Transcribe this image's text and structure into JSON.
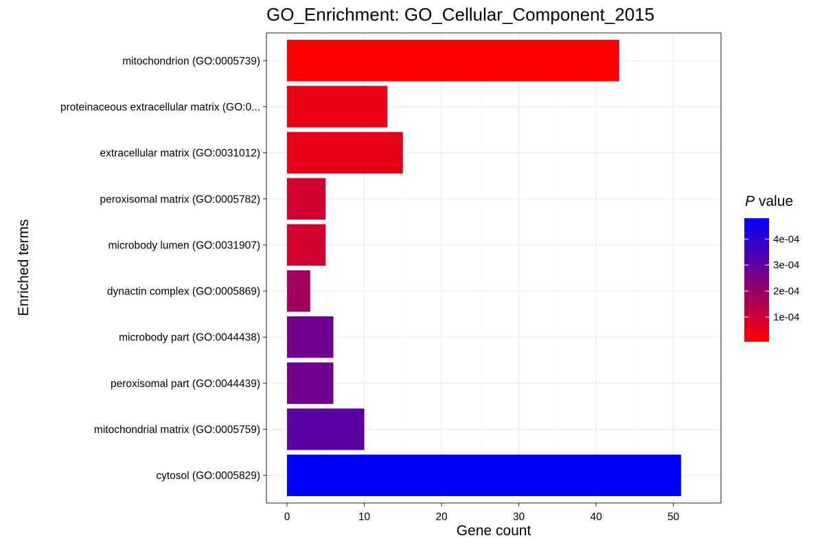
{
  "chart_data": {
    "type": "bar",
    "orientation": "horizontal",
    "title": "GO_Enrichment: GO_Cellular_Component_2015",
    "xlabel": "Gene count",
    "ylabel": "Enriched terms",
    "xlim": [
      0,
      53.5
    ],
    "xticks": [
      0,
      10,
      20,
      30,
      40,
      50
    ],
    "grid": true,
    "categories": [
      "mitochondrion (GO:0005739)",
      "proteinaceous extracellular matrix (GO:0...",
      "extracellular matrix (GO:0031012)",
      "peroxisomal matrix (GO:0005782)",
      "microbody lumen (GO:0031907)",
      "dynactin complex (GO:0005869)",
      "microbody part (GO:0044438)",
      "peroxisomal part (GO:0044439)",
      "mitochondrial matrix (GO:0005759)",
      "cytosol (GO:0005829)"
    ],
    "values": [
      43,
      13,
      15,
      5,
      5,
      3,
      6,
      6,
      10,
      51
    ],
    "p_values": [
      5e-06,
      4e-05,
      5e-05,
      9e-05,
      9e-05,
      0.00018,
      0.00027,
      0.00027,
      0.00031,
      0.00048
    ],
    "legend": {
      "title_italic": "P",
      "title_rest": " value",
      "placement": "right",
      "range": [
        5e-06,
        0.00048
      ],
      "ticks": [
        0.0001,
        0.0002,
        0.0003,
        0.0004
      ],
      "tick_labels": [
        "1e-04",
        "2e-04",
        "3e-04",
        "4e-04"
      ],
      "low_color": "#FF0000",
      "high_color": "#0000FF"
    }
  }
}
